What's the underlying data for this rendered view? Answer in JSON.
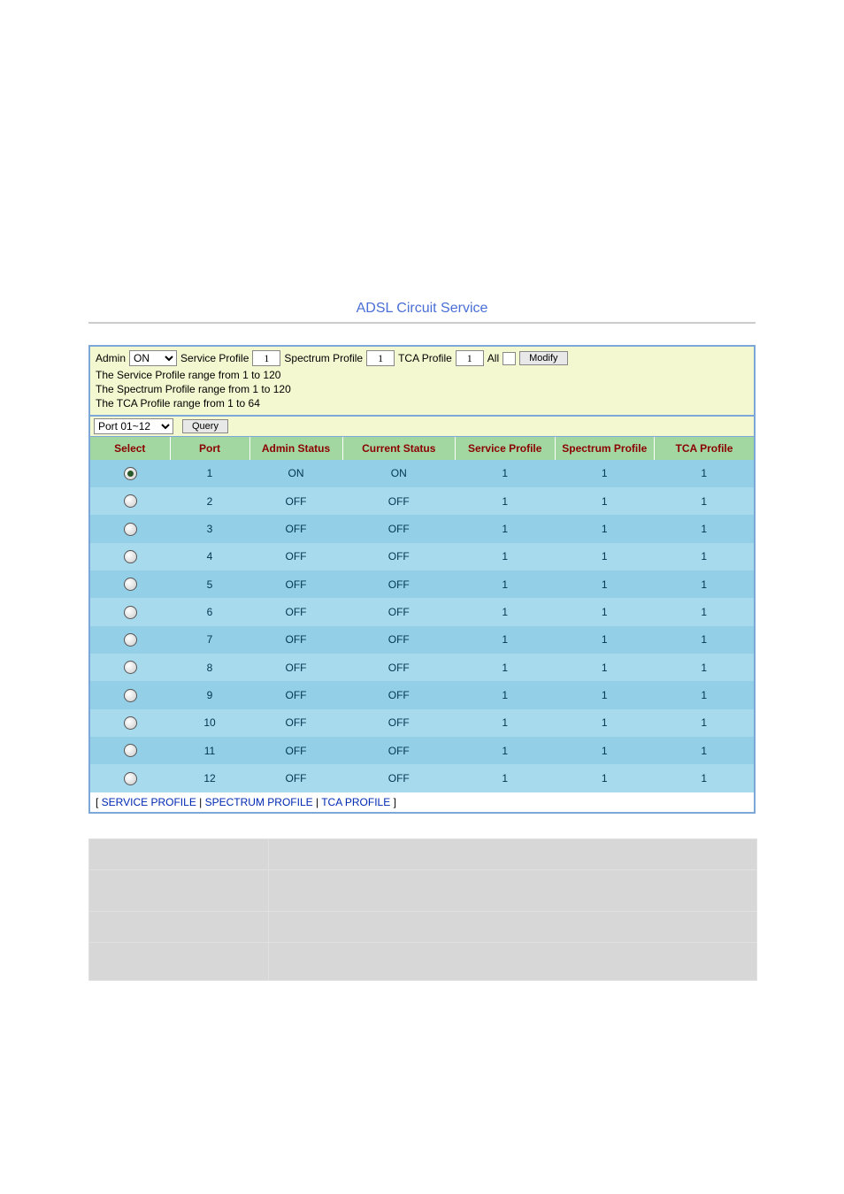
{
  "title": "ADSL Circuit Service",
  "controls": {
    "admin_label": "Admin",
    "admin_value": "ON",
    "service_profile_label": "Service Profile",
    "service_profile_value": "1",
    "spectrum_profile_label": "Spectrum Profile",
    "spectrum_profile_value": "1",
    "tca_profile_label": "TCA Profile",
    "tca_profile_value": "1",
    "all_label": "All",
    "all_checked": false,
    "modify_label": "Modify",
    "hint1": "The Service Profile range from 1 to 120",
    "hint2": "The Spectrum Profile range from 1 to 120",
    "hint3": "The TCA Profile range from 1 to 64",
    "port_range_value": "Port 01~12",
    "query_label": "Query"
  },
  "columns": {
    "select": "Select",
    "port": "Port",
    "admin": "Admin Status",
    "current": "Current Status",
    "service": "Service Profile",
    "spectrum": "Spectrum Profile",
    "tca": "TCA Profile"
  },
  "col_widths": {
    "select": "12%",
    "port": "12%",
    "admin": "14%",
    "current": "17%",
    "service": "15%",
    "spectrum": "15%",
    "tca": "15%"
  },
  "rows": [
    {
      "selected": true,
      "port": "1",
      "admin": "ON",
      "current": "ON",
      "service": "1",
      "spectrum": "1",
      "tca": "1"
    },
    {
      "selected": false,
      "port": "2",
      "admin": "OFF",
      "current": "OFF",
      "service": "1",
      "spectrum": "1",
      "tca": "1"
    },
    {
      "selected": false,
      "port": "3",
      "admin": "OFF",
      "current": "OFF",
      "service": "1",
      "spectrum": "1",
      "tca": "1"
    },
    {
      "selected": false,
      "port": "4",
      "admin": "OFF",
      "current": "OFF",
      "service": "1",
      "spectrum": "1",
      "tca": "1"
    },
    {
      "selected": false,
      "port": "5",
      "admin": "OFF",
      "current": "OFF",
      "service": "1",
      "spectrum": "1",
      "tca": "1"
    },
    {
      "selected": false,
      "port": "6",
      "admin": "OFF",
      "current": "OFF",
      "service": "1",
      "spectrum": "1",
      "tca": "1"
    },
    {
      "selected": false,
      "port": "7",
      "admin": "OFF",
      "current": "OFF",
      "service": "1",
      "spectrum": "1",
      "tca": "1"
    },
    {
      "selected": false,
      "port": "8",
      "admin": "OFF",
      "current": "OFF",
      "service": "1",
      "spectrum": "1",
      "tca": "1"
    },
    {
      "selected": false,
      "port": "9",
      "admin": "OFF",
      "current": "OFF",
      "service": "1",
      "spectrum": "1",
      "tca": "1"
    },
    {
      "selected": false,
      "port": "10",
      "admin": "OFF",
      "current": "OFF",
      "service": "1",
      "spectrum": "1",
      "tca": "1"
    },
    {
      "selected": false,
      "port": "11",
      "admin": "OFF",
      "current": "OFF",
      "service": "1",
      "spectrum": "1",
      "tca": "1"
    },
    {
      "selected": false,
      "port": "12",
      "admin": "OFF",
      "current": "OFF",
      "service": "1",
      "spectrum": "1",
      "tca": "1"
    }
  ],
  "footer": {
    "open": "[ ",
    "sep": " | ",
    "close": " ]",
    "service": "SERVICE PROFILE",
    "spectrum": "SPECTRUM PROFILE",
    "tca": "TCA PROFILE"
  },
  "colors": {
    "title": "#4a6fd6",
    "panel_border": "#7da7d9",
    "header_bg": "#a2d7a2",
    "header_fg": "#8b0000",
    "row_a": "#93d0e8",
    "row_b": "#a8daee",
    "top_bg": "#f4f8d0",
    "link": "#0029b3",
    "def_bg": "#d7d7d7"
  }
}
